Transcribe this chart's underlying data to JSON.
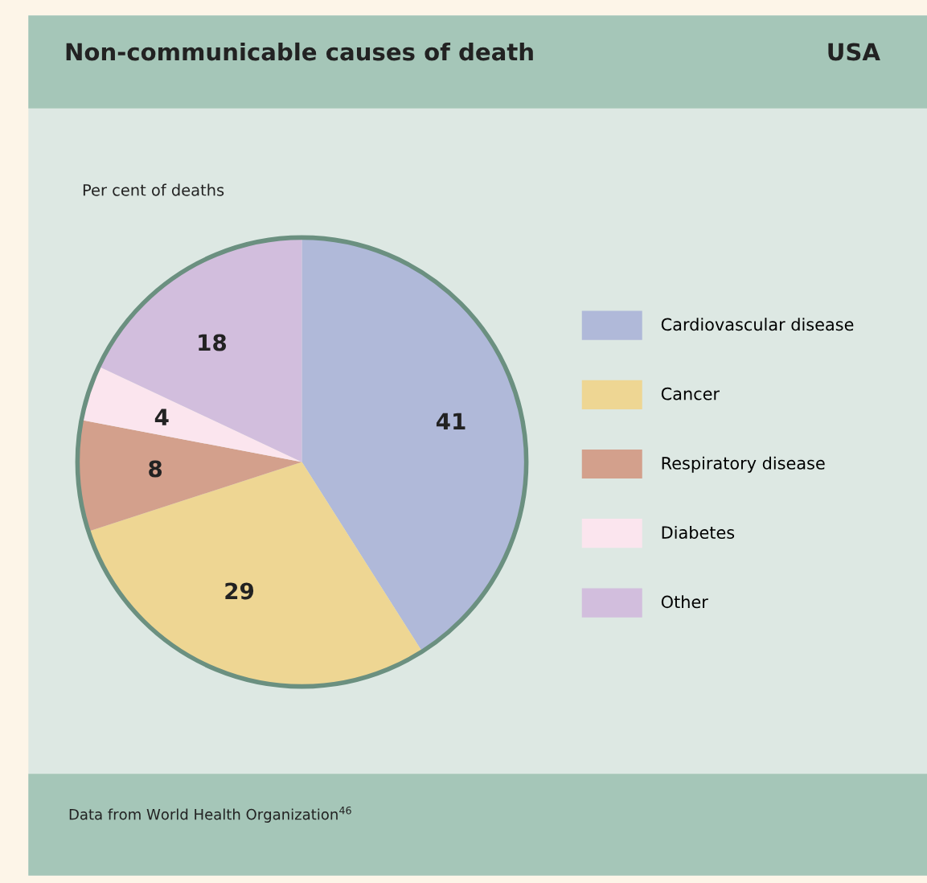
{
  "chart_data": {
    "type": "pie",
    "title": "Non-communicable causes of death",
    "subtitle": "USA",
    "categories": [
      "Cardiovascular disease",
      "Cancer",
      "Respiratory disease",
      "Diabetes",
      "Other"
    ],
    "values": [
      41,
      29,
      8,
      4,
      18
    ],
    "colors": [
      "#b0b9d9",
      "#eed693",
      "#d3a08c",
      "#fbe5ee",
      "#d2bedd"
    ],
    "data_labels": true,
    "legend": "right",
    "annotations": [
      "Per cent of deaths",
      "Data from World Health Organization$^{46}$"
    ]
  }
}
